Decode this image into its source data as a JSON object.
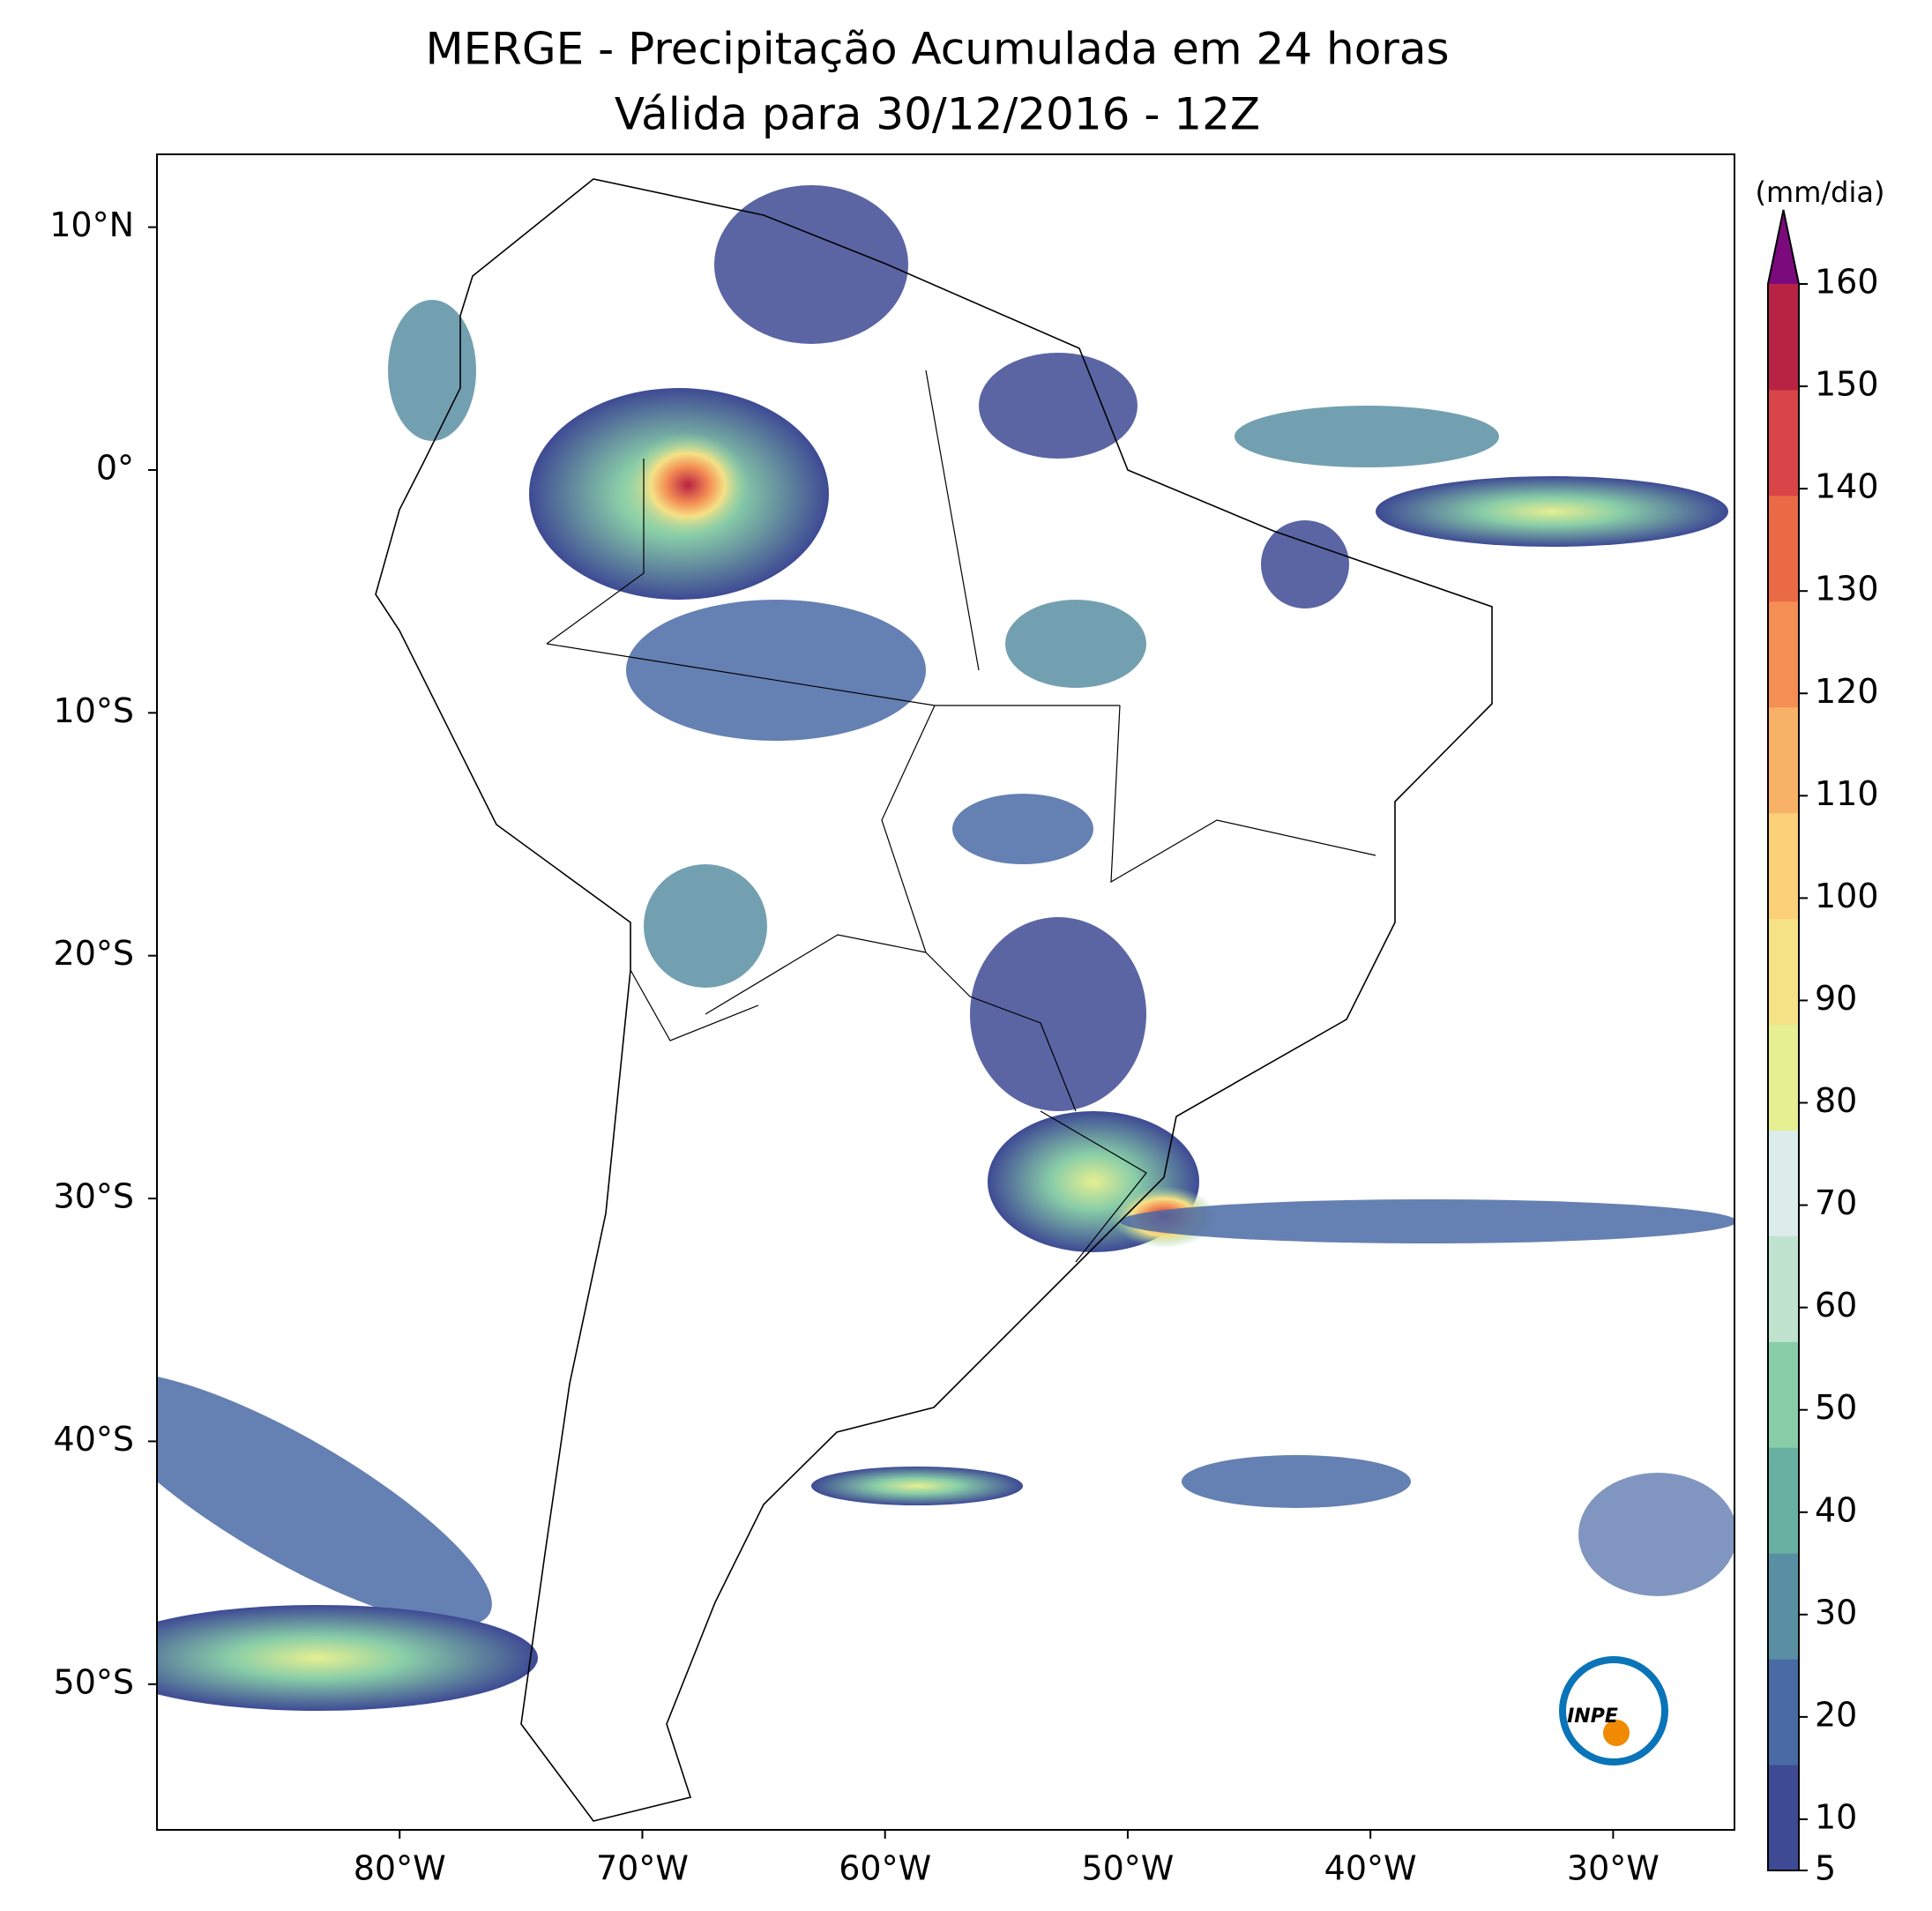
{
  "title": [
    "MERGE - Precipitação Acumulada em 24 horas",
    "Válida para 30/12/2016 - 12Z"
  ],
  "map": {
    "xlim": [
      -90,
      -25
    ],
    "ylim": [
      -56,
      13
    ],
    "xticks": [
      {
        "value": -80,
        "label": "80°W"
      },
      {
        "value": -70,
        "label": "70°W"
      },
      {
        "value": -60,
        "label": "60°W"
      },
      {
        "value": -50,
        "label": "50°W"
      },
      {
        "value": -40,
        "label": "40°W"
      },
      {
        "value": -30,
        "label": "30°W"
      }
    ],
    "yticks": [
      {
        "value": 10,
        "label": "10°N"
      },
      {
        "value": 0,
        "label": "0°"
      },
      {
        "value": -10,
        "label": "10°S"
      },
      {
        "value": -20,
        "label": "20°S"
      },
      {
        "value": -30,
        "label": "30°S"
      },
      {
        "value": -40,
        "label": "40°S"
      },
      {
        "value": -50,
        "label": "50°S"
      }
    ]
  },
  "colorbar": {
    "label": "(mm/dia)",
    "lim": [
      5,
      160
    ],
    "ticks": [
      5,
      10,
      20,
      30,
      40,
      50,
      60,
      70,
      80,
      90,
      100,
      110,
      120,
      130,
      140,
      150,
      160
    ],
    "colors": [
      "#3e4a94",
      "#4a6aa5",
      "#5a8fa3",
      "#68b0a2",
      "#88cda8",
      "#bfe3cf",
      "#dcecea",
      "#e6ef91",
      "#f5e186",
      "#fbd079",
      "#f8b267",
      "#f48e54",
      "#ea6a46",
      "#d94448",
      "#b82243"
    ],
    "extend_color": "#7b0b7d"
  },
  "logo": "INPE"
}
